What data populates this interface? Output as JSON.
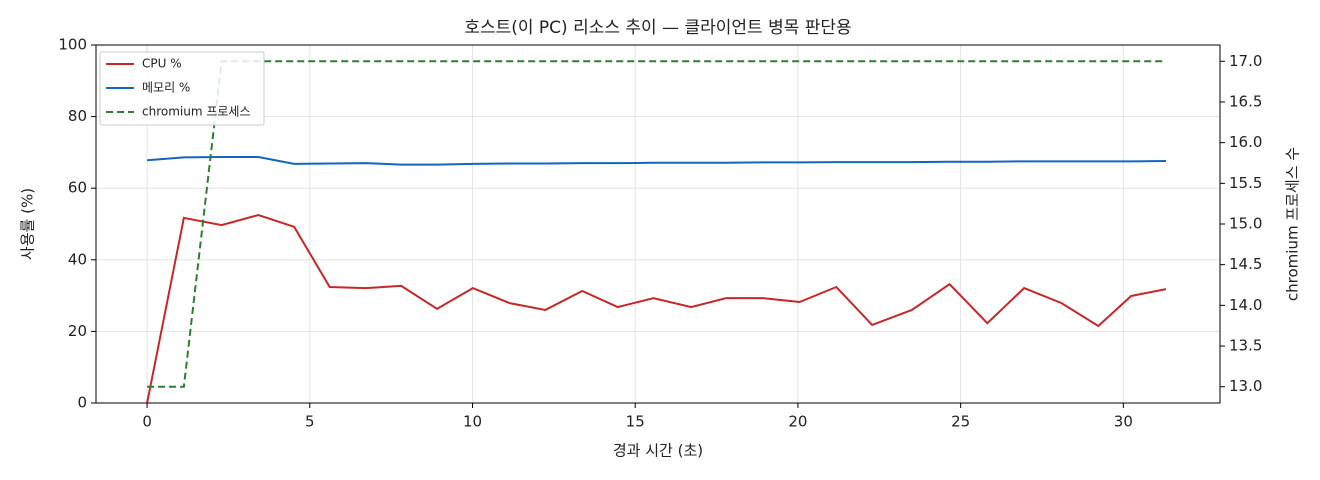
{
  "chart_data": {
    "type": "line",
    "title": "호스트(이 PC) 리소스 추이 — 클라이언트 병목 판단용",
    "x_label": "경과 시간 (초)",
    "y_label": "사용률 (%)",
    "y2_label": "chromium 프로세스 수",
    "x": [
      0,
      1.13,
      2.29,
      3.42,
      4.52,
      5.61,
      6.71,
      7.81,
      8.91,
      10.01,
      11.14,
      12.24,
      13.37,
      14.46,
      15.56,
      16.72,
      17.79,
      18.92,
      20.05,
      21.18,
      22.28,
      23.5,
      24.66,
      25.82,
      26.95,
      28.1,
      29.23,
      30.24,
      31.31
    ],
    "series": [
      {
        "name": "CPU %",
        "color": "#c62828",
        "style": "solid",
        "values": [
          0,
          51.7,
          49.7,
          52.5,
          49.2,
          32.4,
          32.1,
          32.7,
          26.3,
          32.1,
          27.9,
          26.0,
          31.3,
          26.8,
          29.3,
          26.8,
          29.3,
          29.3,
          28.2,
          32.4,
          21.8,
          26.0,
          33.2,
          22.3,
          32.1,
          27.9,
          21.5,
          29.9,
          31.8
        ]
      },
      {
        "name": "메모리 %",
        "color": "#1565c0",
        "style": "solid",
        "values": [
          67.8,
          68.6,
          68.7,
          68.7,
          66.8,
          66.9,
          67.0,
          66.6,
          66.6,
          66.8,
          66.9,
          66.9,
          67.0,
          67.0,
          67.1,
          67.1,
          67.1,
          67.2,
          67.2,
          67.3,
          67.3,
          67.3,
          67.4,
          67.4,
          67.5,
          67.5,
          67.5,
          67.5,
          67.6
        ]
      },
      {
        "name": "chromium 프로세스",
        "color": "#2e7d32",
        "style": "dashed",
        "axis": "y2",
        "values": [
          13,
          13,
          17,
          17,
          17,
          17,
          17,
          17,
          17,
          17,
          17,
          17,
          17,
          17,
          17,
          17,
          17,
          17,
          17,
          17,
          17,
          17,
          17,
          17,
          17,
          17,
          17,
          17,
          17
        ]
      }
    ],
    "xlim": [
      -1.57,
      32.97
    ],
    "xticks": [
      0,
      5,
      10,
      15,
      20,
      25,
      30
    ],
    "ylim": [
      0,
      100
    ],
    "yticks": [
      0,
      20,
      40,
      60,
      80,
      100
    ],
    "y2lim": [
      12.8,
      17.2
    ],
    "y2ticks": [
      {
        "value": 13,
        "label": "13.0"
      },
      {
        "value": 13.5,
        "label": "13.5"
      },
      {
        "value": 14,
        "label": "14.0"
      },
      {
        "value": 14.5,
        "label": "14.5"
      },
      {
        "value": 15,
        "label": "15.0"
      },
      {
        "value": 15.5,
        "label": "15.5"
      },
      {
        "value": 16,
        "label": "16.0"
      },
      {
        "value": 16.5,
        "label": "16.5"
      },
      {
        "value": 17,
        "label": "17.0"
      }
    ],
    "grid": true,
    "legend": "upper-left"
  }
}
